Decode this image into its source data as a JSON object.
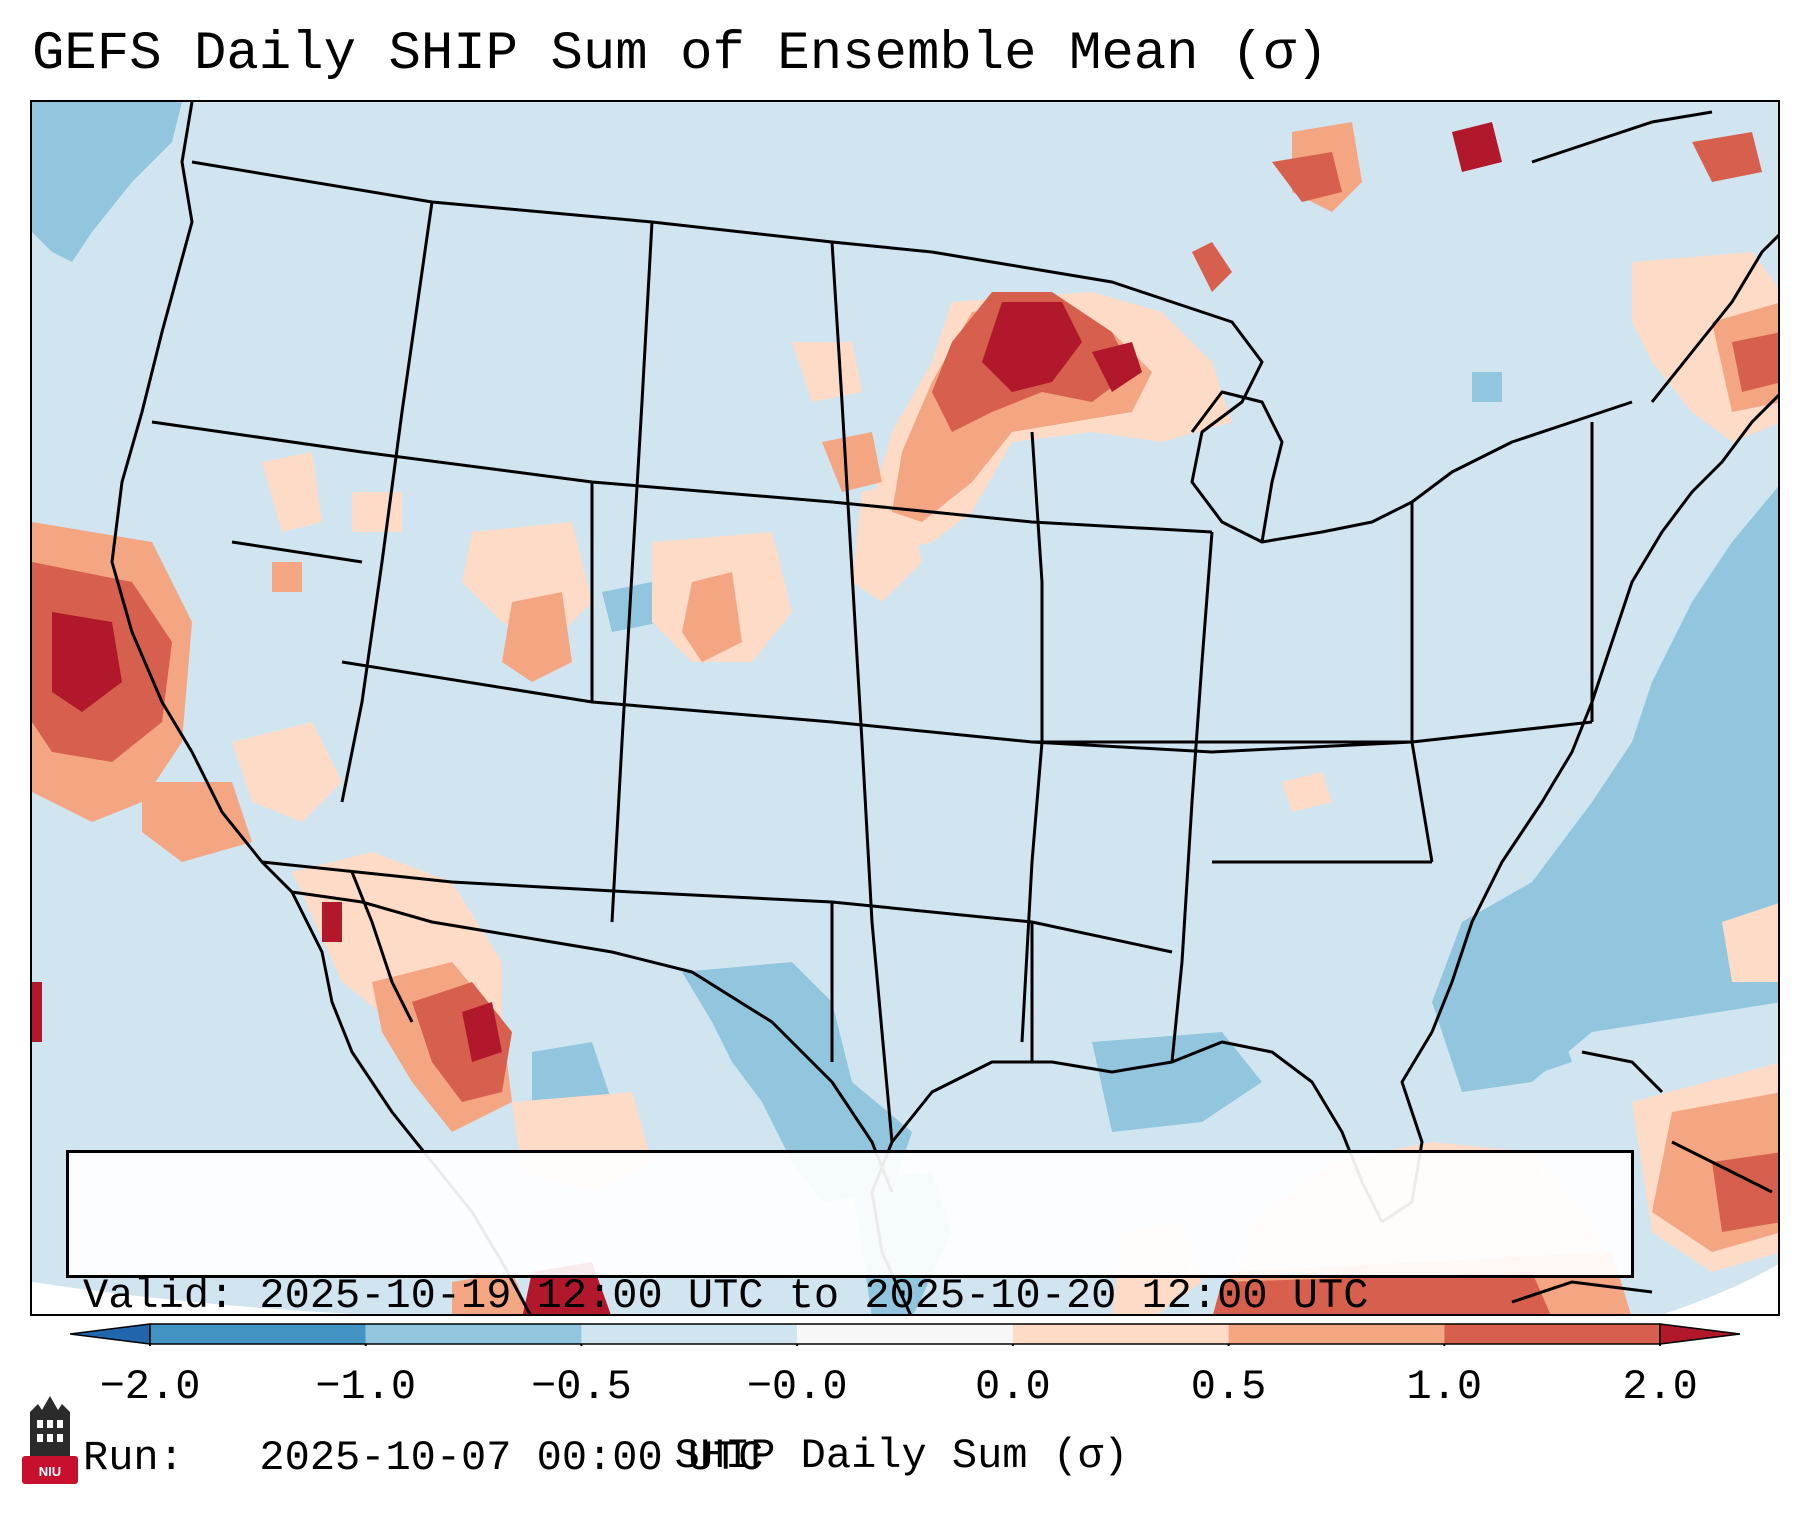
{
  "title": "GEFS Daily SHIP Sum of Ensemble Mean (σ)",
  "info": {
    "valid_line": "Valid: 2025-10-19 12:00 UTC to 2025-10-20 12:00 UTC",
    "run_line": "Run:   2025-10-07 00:00 UTC"
  },
  "colorbar": {
    "label": "SHIP Daily Sum (σ)",
    "ticks": [
      "−2.0",
      "−1.0",
      "−0.5",
      "−0.0",
      "0.0",
      "0.5",
      "1.0",
      "2.0"
    ],
    "colors": {
      "under": "#2166ac",
      "bins": [
        "#4393c3",
        "#92c5de",
        "#d1e5f0",
        "#f7f7f7",
        "#fddbc7",
        "#f4a582",
        "#d6604d"
      ],
      "over": "#b2182b"
    }
  },
  "logo": {
    "text": "NIU",
    "colors": {
      "background": "#c8102e",
      "tower": "#2b2b2b"
    }
  }
}
